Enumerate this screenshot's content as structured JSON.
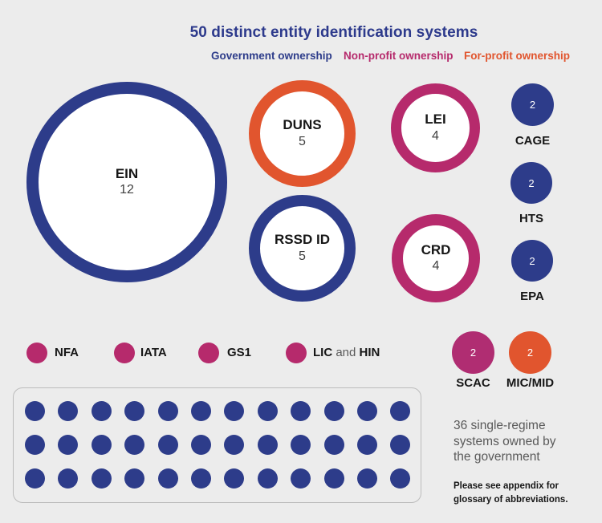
{
  "title": "50 distinct entity identification systems",
  "colors": {
    "background": "#ECECEC",
    "government": "#2D3C8A",
    "non_profit": "#B62A6C",
    "non_profit_alt": "#B02D72",
    "for_profit": "#E1552E",
    "caption_gray": "#595959"
  },
  "legend": {
    "government": {
      "label": "Government ownership",
      "color": "#2D3C8A"
    },
    "non_profit": {
      "label": "Non-profit ownership",
      "color": "#B62A6C"
    },
    "for_profit": {
      "label": "For-profit ownership",
      "color": "#E1552E"
    }
  },
  "ring_circles": [
    {
      "name": "EIN",
      "value": "12",
      "ownership": "government"
    },
    {
      "name": "DUNS",
      "value": "5",
      "ownership": "for-profit"
    },
    {
      "name": "LEI",
      "value": "4",
      "ownership": "non-profit"
    },
    {
      "name": "RSSD ID",
      "value": "5",
      "ownership": "government"
    },
    {
      "name": "CRD",
      "value": "4",
      "ownership": "non-profit"
    }
  ],
  "small_circles": [
    {
      "name": "CAGE",
      "value": "2",
      "ownership": "government"
    },
    {
      "name": "HTS",
      "value": "2",
      "ownership": "government"
    },
    {
      "name": "EPA",
      "value": "2",
      "ownership": "government"
    },
    {
      "name": "SCAC",
      "value": "2",
      "ownership": "non-profit"
    },
    {
      "name": "MIC/MID",
      "value": "2",
      "ownership": "for-profit"
    }
  ],
  "dot_items": [
    {
      "name": "NFA",
      "ownership": "non-profit"
    },
    {
      "name": "IATA",
      "ownership": "non-profit"
    },
    {
      "name": "GS1",
      "ownership": "non-profit"
    },
    {
      "name_bold_1": "LIC",
      "connector": " and ",
      "name_bold_2": "HIN",
      "ownership": "non-profit"
    }
  ],
  "dot_grid": {
    "rows": 3,
    "cols": 12,
    "count": 36,
    "caption": "36 single-regime systems owned by the government"
  },
  "footnote": "Please see appendix for glossary of abbreviations.",
  "chart_data": {
    "type": "bubble",
    "title": "50 distinct entity identification systems",
    "legend_entries": [
      "Government ownership",
      "Non-profit ownership",
      "For-profit ownership"
    ],
    "legend_position": "top",
    "series": [
      {
        "name": "EIN",
        "value": 12,
        "ownership": "government"
      },
      {
        "name": "DUNS",
        "value": 5,
        "ownership": "for-profit"
      },
      {
        "name": "RSSD ID",
        "value": 5,
        "ownership": "government"
      },
      {
        "name": "LEI",
        "value": 4,
        "ownership": "non-profit"
      },
      {
        "name": "CRD",
        "value": 4,
        "ownership": "non-profit"
      },
      {
        "name": "CAGE",
        "value": 2,
        "ownership": "government"
      },
      {
        "name": "HTS",
        "value": 2,
        "ownership": "government"
      },
      {
        "name": "EPA",
        "value": 2,
        "ownership": "government"
      },
      {
        "name": "SCAC",
        "value": 2,
        "ownership": "non-profit"
      },
      {
        "name": "MIC/MID",
        "value": 2,
        "ownership": "for-profit"
      },
      {
        "name": "NFA",
        "value": null,
        "ownership": "non-profit"
      },
      {
        "name": "IATA",
        "value": null,
        "ownership": "non-profit"
      },
      {
        "name": "GS1",
        "value": null,
        "ownership": "non-profit"
      },
      {
        "name": "LIC and HIN",
        "value": null,
        "ownership": "non-profit"
      },
      {
        "name": "36 single-regime systems owned by the government",
        "value": 36,
        "ownership": "government"
      }
    ],
    "annotations": [
      "36 single-regime systems owned by the government",
      "Please see appendix for glossary of abbreviations."
    ]
  }
}
